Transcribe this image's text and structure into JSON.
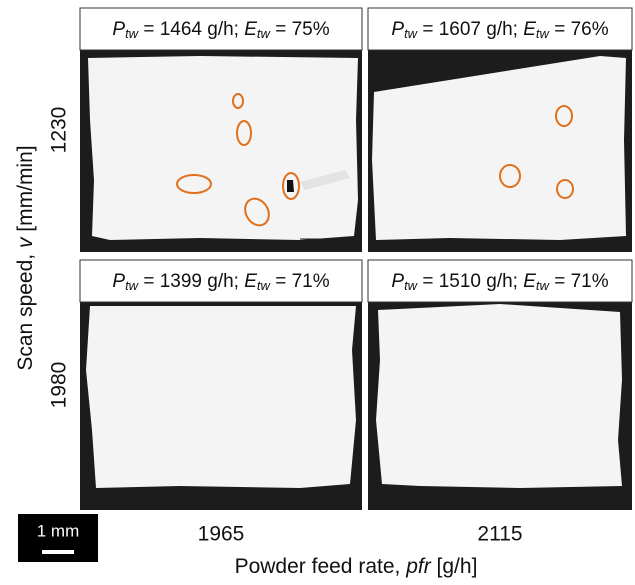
{
  "y_axis": {
    "label_start": "Scan speed, ",
    "label_var": "v",
    "label_end": " [mm/min]",
    "rows": [
      "1230",
      "1980"
    ]
  },
  "x_axis": {
    "label_start": "Powder feed rate, ",
    "label_var": "pfr",
    "label_end": " [g/h]",
    "columns": [
      "1965",
      "2115"
    ]
  },
  "panels": [
    {
      "p_symbol": "P",
      "p_sub": "tw",
      "p_text": " = 1464 g/h; ",
      "e_symbol": "E",
      "e_sub": "tw",
      "e_text": " = 75%",
      "scale_label": "1000 µm"
    },
    {
      "p_symbol": "P",
      "p_sub": "tw",
      "p_text": " = 1607 g/h; ",
      "e_symbol": "E",
      "e_sub": "tw",
      "e_text": " = 76%",
      "scale_label": "1000 µm"
    },
    {
      "p_symbol": "P",
      "p_sub": "tw",
      "p_text": " = 1399 g/h; ",
      "e_symbol": "E",
      "e_sub": "tw",
      "e_text": " = 71%"
    },
    {
      "p_symbol": "P",
      "p_sub": "tw",
      "p_text": " = 1510 g/h; ",
      "e_symbol": "E",
      "e_sub": "tw",
      "e_text": " = 71%"
    }
  ],
  "scale_bar": "1 mm"
}
